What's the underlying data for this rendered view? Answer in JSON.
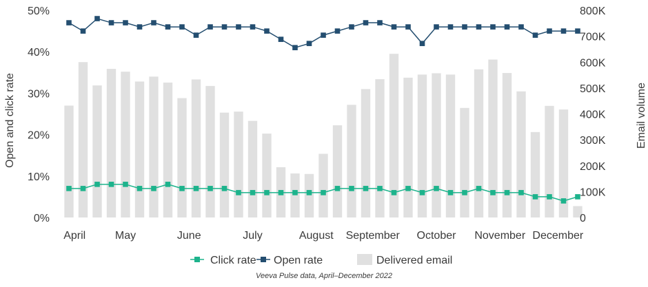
{
  "chart_data": {
    "type": "bar+line",
    "caption": "Veeva Pulse data, April–December 2022",
    "xlabels": [
      "April",
      "May",
      "June",
      "July",
      "August",
      "September",
      "October",
      "November",
      "December"
    ],
    "ylabel_left": "Open and click rate",
    "ylabel_right": "Email volume",
    "yticks_left": [
      "0%",
      "10%",
      "20%",
      "30%",
      "40%",
      "50%"
    ],
    "yticks_right": [
      "0",
      "100K",
      "200K",
      "300K",
      "400K",
      "500K",
      "600K",
      "700K",
      "800K"
    ],
    "ylim_left": [
      0,
      50
    ],
    "ylim_right": [
      0,
      800000
    ],
    "legend": [
      "Click rate",
      "Open rate",
      "Delivered email"
    ],
    "legend_position": "bottom",
    "colors": {
      "click": "#1db38c",
      "open": "#244e70",
      "delivered": "#e0e0e0"
    },
    "series": [
      {
        "name": "Delivered email",
        "axis": "right",
        "kind": "bar",
        "values": [
          432000,
          600000,
          510000,
          574000,
          563000,
          525000,
          544000,
          521000,
          461000,
          533000,
          508000,
          405000,
          409000,
          373000,
          324000,
          194000,
          170000,
          168000,
          246000,
          356000,
          435000,
          496000,
          534000,
          632000,
          540000,
          552000,
          557000,
          552000,
          423000,
          572000,
          610000,
          558000,
          487000,
          330000,
          431000,
          417000,
          44000
        ]
      },
      {
        "name": "Open rate",
        "axis": "left",
        "kind": "line",
        "unit": "%",
        "values": [
          47,
          45,
          48,
          47,
          47,
          46,
          47,
          46,
          46,
          44,
          46,
          46,
          46,
          46,
          45,
          43,
          41,
          42,
          44,
          45,
          46,
          47,
          47,
          46,
          46,
          42,
          46,
          46,
          46,
          46,
          46,
          46,
          46,
          44,
          45,
          45,
          45
        ]
      },
      {
        "name": "Click rate",
        "axis": "left",
        "kind": "line",
        "unit": "%",
        "values": [
          7,
          7,
          8,
          8,
          8,
          7,
          7,
          8,
          7,
          7,
          7,
          7,
          6,
          6,
          6,
          6,
          6,
          6,
          6,
          7,
          7,
          7,
          7,
          6,
          7,
          6,
          7,
          6,
          6,
          7,
          6,
          6,
          6,
          5,
          5,
          4,
          5
        ]
      }
    ]
  }
}
